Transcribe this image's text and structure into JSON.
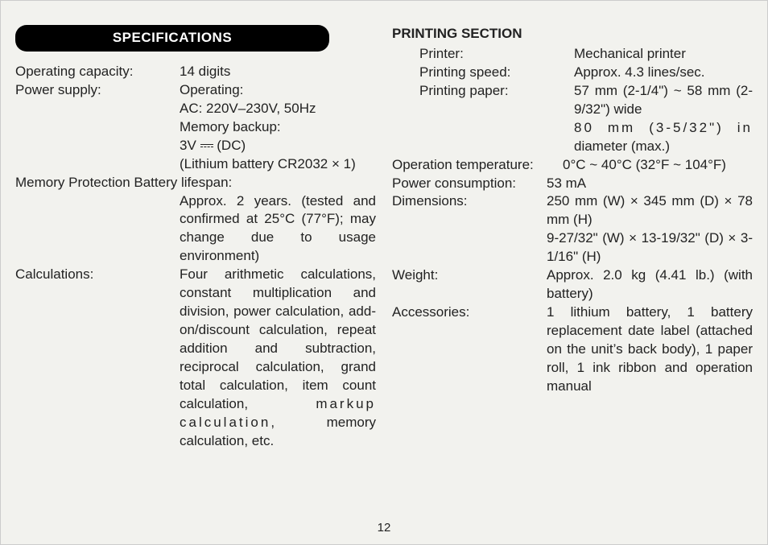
{
  "heading": "SPECIFICATIONS",
  "left": {
    "op_cap_label": "Operating capacity:",
    "op_cap_value": "14 digits",
    "ps_label": "Power supply:",
    "ps_l1": "Operating:",
    "ps_l2": "AC: 220V–230V, 50Hz",
    "ps_l3": "Memory backup:",
    "ps_l4a": "3V ",
    "ps_l4b": " (DC)",
    "ps_l5": "(Lithium battery CR2032 × 1)",
    "mpb_label": "Memory Protection Battery lifespan:",
    "mpb_value": "Approx. 2 years. (tested and confirmed at 25°C (77°F); may change due to usage environment)",
    "calc_label": "Calculations:",
    "calc_value_a": "Four arithmetic calcula­tions, constant multiplica­tion and division, power calculation, add-on/dis­count calculation, repeat addition and subtraction, reciprocal calculation, grand total calculation, item count calculation,",
    "calc_value_b": "markup calculation,",
    "calc_value_c": "memory calculation, etc."
  },
  "right": {
    "section_head": "PRINTING SECTION",
    "printer_label": "Printer:",
    "printer_value": "Mechanical printer",
    "pspeed_label": "Printing speed:",
    "pspeed_value": "Approx. 4.3 lines/sec.",
    "ppaper_label": "Printing paper:",
    "ppaper_l1": "57 mm (2-1/4\") ~ 58 mm (2-9/32\") wide",
    "ppaper_l2a": "80 mm (3-5/32\") in",
    "ppaper_l2b": "diameter (max.)",
    "otemp_label": "Operation temperature:",
    "otemp_value": "0°C ~ 40°C (32°F ~ 104°F)",
    "pcons_label": "Power consumption:",
    "pcons_value": "53 mA",
    "dim_label": "Dimensions:",
    "dim_l1": "250 mm (W) × 345 mm (D) × 78 mm (H)",
    "dim_l2": "9-27/32\" (W) × 13-19/32\" (D) × 3-1/16\" (H)",
    "weight_label": "Weight:",
    "weight_value": "Approx. 2.0 kg (4.41 lb.) (with battery)",
    "acc_label": "Accessories:",
    "acc_value": "1 lithium battery, 1 battery replacement date label (attached on the unit’s back body), 1 paper roll, 1 ink ribbon and operation manual"
  },
  "page_number": "12"
}
